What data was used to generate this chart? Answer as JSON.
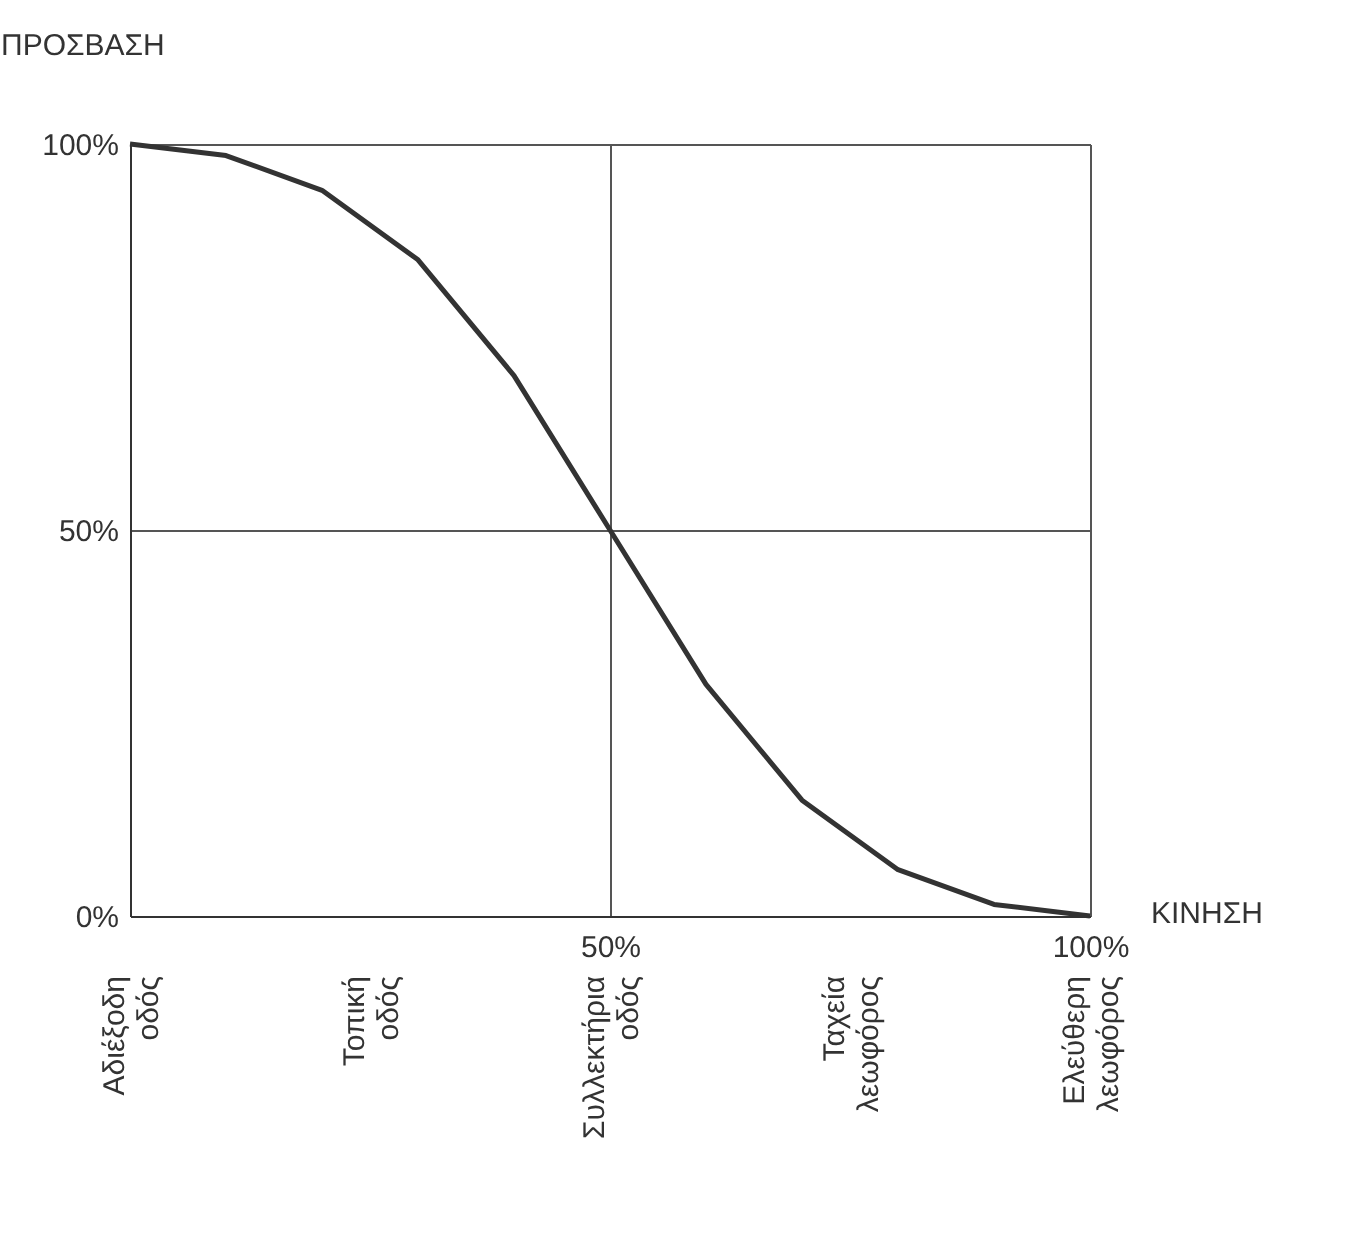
{
  "chart_data": {
    "type": "line",
    "xlabel": "ΚΙΝΗΣΗ",
    "ylabel": "ΠΡΟΣΒΑΣΗ",
    "x": [
      0,
      10,
      20,
      30,
      40,
      50,
      60,
      70,
      80,
      90,
      100
    ],
    "series": [
      {
        "color": "#333333",
        "values": [
          100,
          98.5,
          94,
          85,
          70,
          50,
          30,
          15,
          6,
          1.5,
          0
        ]
      }
    ],
    "xlim": [
      0,
      100
    ],
    "ylim": [
      0,
      100
    ],
    "xticks": [
      {
        "value": 50,
        "label": "50%"
      },
      {
        "value": 100,
        "label": "100%"
      }
    ],
    "yticks": [
      {
        "value": 0,
        "label": "0%"
      },
      {
        "value": 50,
        "label": "50%"
      },
      {
        "value": 100,
        "label": "100%"
      }
    ],
    "grid": true,
    "marker": "none",
    "line_style": "solid",
    "annotations": [
      "Αδιέξοδη\nοδός",
      "Τοπική\nοδός",
      "Συλλεκτήρια\nοδός",
      "Ταχεία\nλεωφόρος",
      "Ελεύθερη\nλεωφόρος"
    ]
  }
}
